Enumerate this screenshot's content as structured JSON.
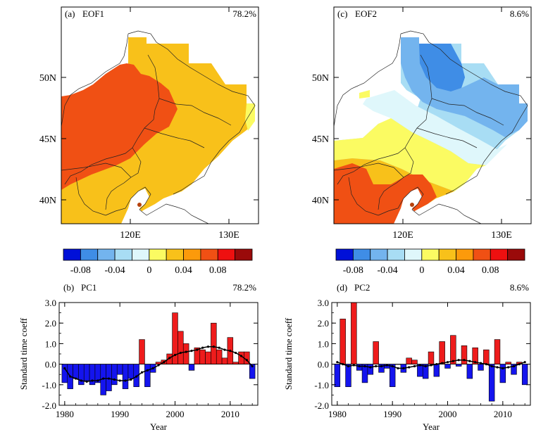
{
  "maps": [
    {
      "panel": "(a)",
      "name": "EOF1",
      "pct": "78.2%",
      "lat_ticks": [
        "50N",
        "45N",
        "40N"
      ],
      "lon_ticks": [
        "120E",
        "130E"
      ]
    },
    {
      "panel": "(c)",
      "name": "EOF2",
      "pct": "8.6%",
      "lat_ticks": [
        "50N",
        "45N",
        "40N"
      ],
      "lon_ticks": [
        "120E",
        "130E"
      ]
    }
  ],
  "colorbar": {
    "colors": [
      "#0010d8",
      "#3f8de6",
      "#73b4ee",
      "#a8ddf4",
      "#dff7fb",
      "#fbfb62",
      "#f8c11a",
      "#fc9a0b",
      "#f05014",
      "#ee1010",
      "#9a0a0a"
    ],
    "labels": [
      "-0.08",
      "-0.04",
      "0",
      "0.04",
      "0.08"
    ]
  },
  "chart_data": [
    {
      "type": "bar",
      "panel": "(b)",
      "name": "PC1",
      "pct": "78.2%",
      "ylabel": "Standard time coeff",
      "xlabel": "Year",
      "ylim": [
        -2.0,
        3.0
      ],
      "yticks": [
        "3.0",
        "2.0",
        "1.0",
        "0.0",
        "-1.0",
        "-2.0"
      ],
      "xticks": [
        "1980",
        "1990",
        "2000",
        "2010"
      ],
      "years": [
        1980,
        1981,
        1982,
        1983,
        1984,
        1985,
        1986,
        1987,
        1988,
        1989,
        1990,
        1991,
        1992,
        1993,
        1994,
        1995,
        1996,
        1997,
        1998,
        1999,
        2000,
        2001,
        2002,
        2003,
        2004,
        2005,
        2006,
        2007,
        2008,
        2009,
        2010,
        2011,
        2012,
        2013,
        2014
      ],
      "values": [
        -0.9,
        -1.2,
        -0.7,
        -1.0,
        -0.8,
        -1.0,
        -0.9,
        -1.5,
        -1.3,
        -1.0,
        -0.5,
        -1.2,
        -0.7,
        -1.1,
        1.2,
        -1.1,
        -0.4,
        0.1,
        0.2,
        0.5,
        2.5,
        1.6,
        1.0,
        -0.3,
        0.8,
        0.7,
        0.6,
        2.0,
        0.7,
        0.3,
        1.3,
        0.1,
        0.6,
        0.6,
        -0.7
      ],
      "smooth": [
        -0.2,
        -0.6,
        -0.7,
        -0.8,
        -0.85,
        -0.8,
        -0.8,
        -0.7,
        -0.7,
        -0.75,
        -0.8,
        -0.8,
        -0.75,
        -0.6,
        -0.4,
        -0.3,
        -0.2,
        -0.05,
        0.1,
        0.3,
        0.45,
        0.55,
        0.6,
        0.65,
        0.7,
        0.8,
        0.85,
        0.85,
        0.8,
        0.7,
        0.65,
        0.55,
        0.4,
        0.2,
        -0.1
      ]
    },
    {
      "type": "bar",
      "panel": "(d)",
      "name": "PC2",
      "pct": "8.6%",
      "ylabel": "Standard time coeff",
      "xlabel": "Year",
      "ylim": [
        -2.0,
        3.0
      ],
      "yticks": [
        "3.0",
        "2.0",
        "1.0",
        "0.0",
        "-1.0",
        "-2.0"
      ],
      "xticks": [
        "1980",
        "1990",
        "2000",
        "2010"
      ],
      "years": [
        1980,
        1981,
        1982,
        1983,
        1984,
        1985,
        1986,
        1987,
        1988,
        1989,
        1990,
        1991,
        1992,
        1993,
        1994,
        1995,
        1996,
        1997,
        1998,
        1999,
        2000,
        2001,
        2002,
        2003,
        2004,
        2005,
        2006,
        2007,
        2008,
        2009,
        2010,
        2011,
        2012,
        2013,
        2014
      ],
      "values": [
        -1.1,
        2.2,
        -1.1,
        3.0,
        -0.3,
        -0.9,
        -0.5,
        1.1,
        -0.4,
        -0.2,
        -1.1,
        0.0,
        -0.4,
        0.3,
        0.2,
        -0.6,
        -0.7,
        0.6,
        -0.6,
        1.1,
        -0.2,
        1.4,
        -0.1,
        0.9,
        -0.7,
        0.8,
        -0.3,
        0.7,
        -1.8,
        1.2,
        -0.9,
        0.1,
        -0.5,
        0.1,
        -1.0
      ],
      "smooth": [
        0.1,
        0.0,
        -0.1,
        -0.05,
        -0.1,
        -0.1,
        -0.15,
        -0.1,
        -0.1,
        -0.05,
        -0.1,
        -0.2,
        -0.2,
        -0.15,
        -0.1,
        -0.05,
        -0.1,
        -0.05,
        0.0,
        0.05,
        0.1,
        0.15,
        0.2,
        0.2,
        0.15,
        0.1,
        0.05,
        0.0,
        -0.1,
        -0.15,
        -0.2,
        -0.15,
        -0.1,
        0.0,
        0.1
      ]
    }
  ]
}
